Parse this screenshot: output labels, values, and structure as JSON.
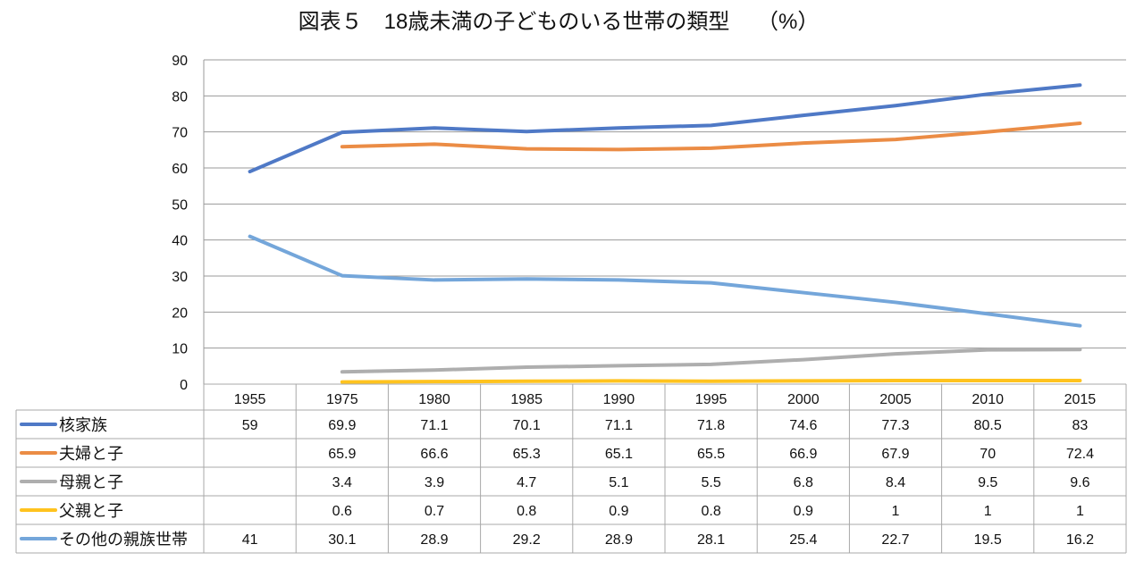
{
  "chart_data": {
    "type": "line",
    "title": "図表５　18歳未満の子どものいる世帯の類型　 （%）",
    "categories": [
      "1955",
      "1975",
      "1980",
      "1985",
      "1990",
      "1995",
      "2000",
      "2005",
      "2010",
      "2015"
    ],
    "ylim": [
      0,
      90
    ],
    "yticks": [
      0,
      10,
      20,
      30,
      40,
      50,
      60,
      70,
      80,
      90
    ],
    "grid": true,
    "legend": "data-table-below",
    "series": [
      {
        "name": "核家族",
        "color": "#4F79C6",
        "values": [
          59,
          69.9,
          71.1,
          70.1,
          71.1,
          71.8,
          74.6,
          77.3,
          80.5,
          83
        ]
      },
      {
        "name": "夫婦と子",
        "color": "#EB8C45",
        "values": [
          null,
          65.9,
          66.6,
          65.3,
          65.1,
          65.5,
          66.9,
          67.9,
          70,
          72.4
        ]
      },
      {
        "name": "母親と子",
        "color": "#AEAEAE",
        "values": [
          null,
          3.4,
          3.9,
          4.7,
          5.1,
          5.5,
          6.8,
          8.4,
          9.5,
          9.6
        ]
      },
      {
        "name": "父親と子",
        "color": "#FFC31F",
        "values": [
          null,
          0.6,
          0.7,
          0.8,
          0.9,
          0.8,
          0.9,
          1,
          1,
          1
        ]
      },
      {
        "name": "その他の親族世帯",
        "color": "#74A6DA",
        "values": [
          41,
          30.1,
          28.9,
          29.2,
          28.9,
          28.1,
          25.4,
          22.7,
          19.5,
          16.2
        ]
      }
    ]
  }
}
